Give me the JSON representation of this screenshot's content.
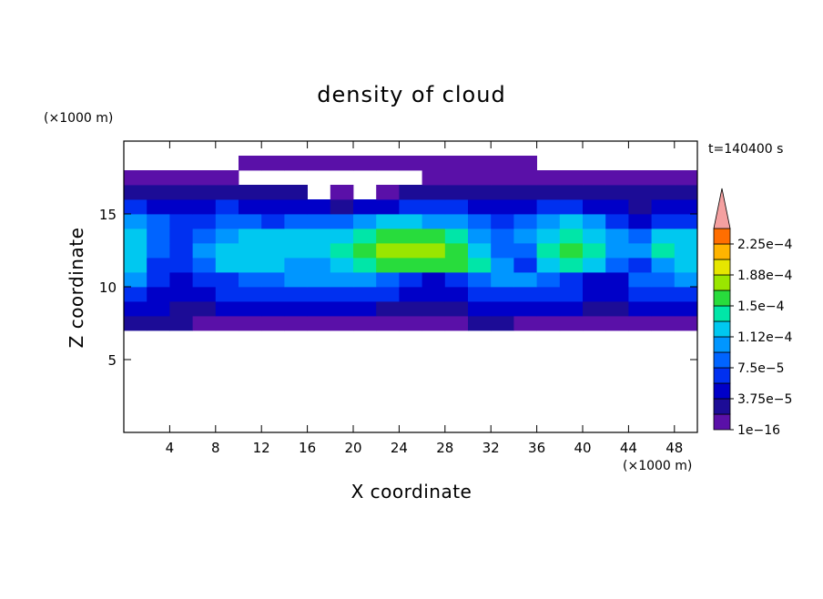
{
  "chart_data": {
    "type": "contour",
    "title": "density of cloud",
    "xlabel": "X coordinate",
    "ylabel": "Z coordinate",
    "xunit": "(×1000 m)",
    "yunit": "(×1000 m)",
    "annotation": "t=140400 s",
    "xlim": [
      0,
      50
    ],
    "ylim": [
      0,
      20
    ],
    "xticks": [
      4,
      8,
      12,
      16,
      20,
      24,
      28,
      32,
      36,
      40,
      44,
      48
    ],
    "yticks": [
      5,
      10,
      15
    ],
    "x": [
      1,
      3,
      5,
      7,
      9,
      11,
      13,
      15,
      17,
      19,
      21,
      23,
      25,
      27,
      29,
      31,
      33,
      35,
      37,
      39,
      41,
      43,
      45,
      47,
      49
    ],
    "z": [
      7.5,
      8.5,
      9.5,
      10.5,
      11.5,
      12.5,
      13.5,
      14.5,
      15.5,
      16.5,
      17.5,
      18.5
    ],
    "values": [
      [
        2e-05,
        2e-05,
        2e-05,
        1e-05,
        1e-05,
        1e-05,
        1e-05,
        1e-05,
        1e-05,
        1e-05,
        1e-05,
        1e-05,
        1e-05,
        1e-05,
        1e-05,
        2e-05,
        2e-05,
        1e-05,
        1e-05,
        1e-05,
        1e-05,
        1e-05,
        1e-05,
        1e-05,
        1e-05
      ],
      [
        4e-05,
        4e-05,
        3e-05,
        3e-05,
        4e-05,
        4e-05,
        4e-05,
        4e-05,
        4e-05,
        4e-05,
        4e-05,
        3e-05,
        3e-05,
        3e-05,
        3e-05,
        4e-05,
        4e-05,
        4e-05,
        4e-05,
        4e-05,
        3e-05,
        3e-05,
        4e-05,
        4e-05,
        4e-05
      ],
      [
        7e-05,
        5e-05,
        4e-05,
        5e-05,
        6e-05,
        6e-05,
        6e-05,
        7e-05,
        7e-05,
        7e-05,
        7e-05,
        6e-05,
        5e-05,
        4e-05,
        5e-05,
        6e-05,
        7e-05,
        7e-05,
        7e-05,
        6e-05,
        5e-05,
        4e-05,
        6e-05,
        6e-05,
        7e-05
      ],
      [
        0.0001,
        6e-05,
        5e-05,
        6e-05,
        7e-05,
        8e-05,
        9e-05,
        0.0001,
        0.0001,
        0.0001,
        0.0001,
        8e-05,
        6e-05,
        4e-05,
        6e-05,
        9e-05,
        0.0001,
        0.0001,
        9e-05,
        7e-05,
        5e-05,
        5e-05,
        8e-05,
        9e-05,
        0.0001
      ],
      [
        0.00012,
        7e-05,
        6e-05,
        8e-05,
        0.00012,
        0.00012,
        0.00012,
        0.00011,
        0.00011,
        0.00013,
        0.00014,
        0.00015,
        0.00015,
        0.00016,
        0.00016,
        0.00014,
        0.0001,
        6e-05,
        0.00012,
        0.00014,
        0.00013,
        9e-05,
        6e-05,
        0.00011,
        0.00013
      ],
      [
        0.00013,
        8e-05,
        6e-05,
        0.0001,
        0.00013,
        0.00013,
        0.00013,
        0.00013,
        0.00013,
        0.00014,
        0.00016,
        0.00017,
        0.00017,
        0.00017,
        0.00016,
        0.00013,
        9e-05,
        8e-05,
        0.00014,
        0.00016,
        0.00014,
        0.0001,
        0.0001,
        0.00014,
        0.00013
      ],
      [
        0.00012,
        9e-05,
        7e-05,
        8e-05,
        0.00011,
        0.00012,
        0.00012,
        0.00012,
        0.00012,
        0.00013,
        0.00014,
        0.00016,
        0.00016,
        0.00016,
        0.00014,
        0.00011,
        8e-05,
        0.0001,
        0.00013,
        0.00014,
        0.00012,
        0.0001,
        9e-05,
        0.00012,
        0.00012
      ],
      [
        0.00011,
        8e-05,
        6e-05,
        7e-05,
        9e-05,
        8e-05,
        7e-05,
        8e-05,
        8e-05,
        8e-05,
        0.0001,
        0.00012,
        0.00012,
        0.00011,
        0.0001,
        8e-05,
        6e-05,
        8e-05,
        0.0001,
        0.00012,
        0.0001,
        7e-05,
        5e-05,
        6e-05,
        7e-05
      ],
      [
        6e-05,
        5e-05,
        4e-05,
        5e-05,
        6e-05,
        5e-05,
        4e-05,
        5e-05,
        5e-05,
        3e-05,
        4e-05,
        5e-05,
        6e-05,
        6e-05,
        6e-05,
        5e-05,
        4e-05,
        5e-05,
        6e-05,
        6e-05,
        5e-05,
        4e-05,
        3e-05,
        4e-05,
        4e-05
      ],
      [
        3e-05,
        3e-05,
        3e-05,
        3e-05,
        3e-05,
        3e-05,
        2e-05,
        2e-05,
        null,
        1e-05,
        null,
        1e-05,
        2e-05,
        2e-05,
        3e-05,
        3e-05,
        3e-05,
        3e-05,
        3e-05,
        3e-05,
        3e-05,
        3e-05,
        2e-05,
        2e-05,
        2e-05
      ],
      [
        1e-05,
        1e-05,
        1e-05,
        1e-05,
        1e-05,
        null,
        null,
        null,
        null,
        null,
        null,
        null,
        null,
        1e-05,
        1e-05,
        1e-05,
        1e-05,
        1e-05,
        1e-05,
        1e-05,
        1e-05,
        1e-05,
        1e-05,
        1e-05,
        1e-05
      ],
      [
        null,
        null,
        null,
        null,
        null,
        1e-05,
        1e-05,
        1e-05,
        1e-05,
        1e-05,
        1e-05,
        1e-05,
        1e-05,
        1e-05,
        1e-05,
        1e-05,
        1e-05,
        1e-05,
        null,
        null,
        null,
        null,
        null,
        null,
        null
      ]
    ],
    "levels": [
      1e-16,
      1.875e-05,
      3.75e-05,
      5.625e-05,
      7.5e-05,
      9.375e-05,
      0.000112,
      0.00013125,
      0.00015,
      0.00016875,
      0.000188,
      0.00020625,
      0.000225,
      0.00024375
    ],
    "colors": [
      "#5a10a8",
      "#1c0c96",
      "#0000c8",
      "#0030f0",
      "#0064ff",
      "#0096ff",
      "#00c8f0",
      "#00e6a8",
      "#28dc3c",
      "#9ae600",
      "#e6e600",
      "#ffb400",
      "#ff6e00"
    ],
    "extend_color": "#f4a0a0",
    "cticks": [
      {
        "value": 1e-16,
        "label": "1e−16"
      },
      {
        "value": 3.75e-05,
        "label": "3.75e−5"
      },
      {
        "value": 7.5e-05,
        "label": "7.5e−5"
      },
      {
        "value": 0.000112,
        "label": "1.12e−4"
      },
      {
        "value": 0.00015,
        "label": "1.5e−4"
      },
      {
        "value": 0.000188,
        "label": "1.88e−4"
      },
      {
        "value": 0.000225,
        "label": "2.25e−4"
      }
    ]
  }
}
